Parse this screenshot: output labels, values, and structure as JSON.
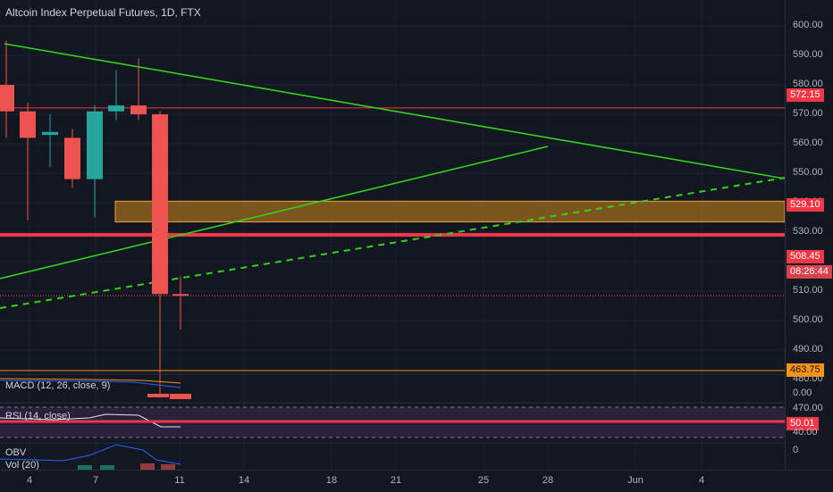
{
  "chart_title": "Altcoin Index Perpetual Futures, 1D, FTX",
  "price_axis": {
    "ticks": [
      "600.00",
      "590.00",
      "580.00",
      "570.00",
      "560.00",
      "550.00",
      "540.00",
      "530.00",
      "520.00",
      "510.00",
      "500.00",
      "490.00",
      "480.00",
      "470.00"
    ]
  },
  "badges": {
    "resistance": "572.15",
    "support": "529.10",
    "last_price": "508.45",
    "countdown": "08:26:44",
    "low_level": "463.75"
  },
  "time_axis": {
    "ticks": [
      "4",
      "7",
      "11",
      "14",
      "18",
      "21",
      "25",
      "28",
      "Jun",
      "4"
    ]
  },
  "indicators": {
    "macd": {
      "label": "MACD (12, 26, close, 9)",
      "zero": "0.00"
    },
    "rsi": {
      "label": "RSI (14, close)",
      "value": "50.01",
      "low": "40.00"
    },
    "obv": {
      "label": "OBV",
      "zero": "0"
    },
    "vol": {
      "label": "Vol (20)"
    }
  },
  "colors": {
    "background": "#131722",
    "bull": "#26a69a",
    "bear": "#ef5350",
    "trendline": "#34d21a",
    "resistance": "#f23645",
    "zone_fill": "#a06a1e",
    "zone_border": "#e8a93a",
    "rsi_band": "#2a1f3d"
  },
  "chart_data": {
    "type": "candlestick",
    "candles": [
      {
        "o": 580,
        "h": 595,
        "l": 562,
        "c": 571
      },
      {
        "o": 571,
        "h": 574,
        "l": 534,
        "c": 562
      },
      {
        "o": 563,
        "h": 570,
        "l": 552,
        "c": 564
      },
      {
        "o": 562,
        "h": 565,
        "l": 545,
        "c": 548
      },
      {
        "o": 548,
        "h": 573,
        "l": 535,
        "c": 571
      },
      {
        "o": 571,
        "h": 585,
        "l": 568,
        "c": 573
      },
      {
        "o": 573,
        "h": 589,
        "l": 568,
        "c": 570
      },
      {
        "o": 570,
        "h": 571,
        "l": 475,
        "c": 509
      },
      {
        "o": 509,
        "h": 515,
        "l": 497,
        "c": 508.45
      }
    ],
    "horizontal_lines": [
      572.15,
      529.1,
      463.75
    ],
    "zone": [
      533.5,
      540.5
    ],
    "ylim": [
      460,
      608
    ]
  }
}
